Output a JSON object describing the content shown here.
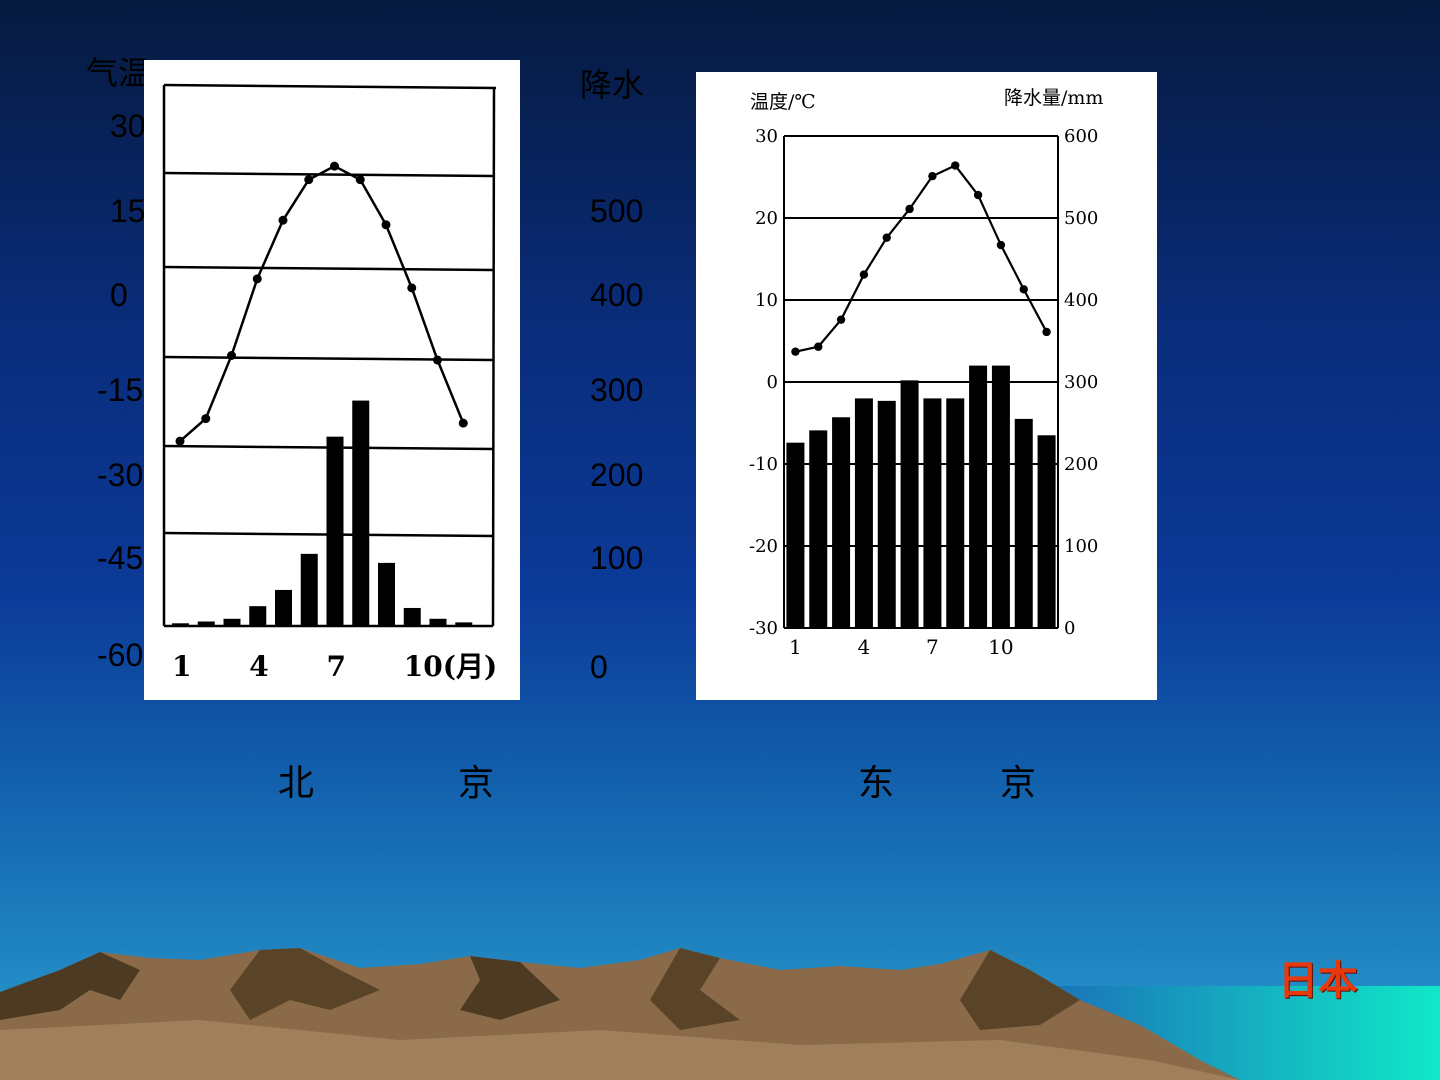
{
  "left_axis": {
    "title": "气温",
    "ticks": [
      "30",
      "15",
      "0",
      "-15",
      "-30",
      "-45",
      "-60"
    ]
  },
  "right_axis": {
    "title": "降水",
    "ticks": [
      "500",
      "400",
      "300",
      "200",
      "100",
      "0"
    ]
  },
  "cities": {
    "beijing": [
      "北",
      "京"
    ],
    "tokyo": [
      "东",
      "京"
    ]
  },
  "country_label": "日本",
  "chart_data": [
    {
      "type": "bar",
      "id": "beijing",
      "x_ticks": [
        "1",
        "4",
        "7",
        "10(月)"
      ],
      "months": [
        1,
        2,
        3,
        4,
        5,
        6,
        7,
        8,
        9,
        10,
        11,
        12
      ],
      "temperature": [
        -4.5,
        -2,
        5,
        13.5,
        20,
        24.5,
        26,
        24.5,
        19.5,
        12.5,
        4.5,
        -2.5
      ],
      "precipitation": [
        3,
        5,
        8,
        22,
        40,
        80,
        210,
        250,
        70,
        20,
        8,
        4
      ],
      "temp_ylim": [
        -25,
        35
      ],
      "precip_ylim": [
        0,
        600
      ]
    },
    {
      "type": "bar",
      "id": "tokyo",
      "ylabel_left": "温度/℃",
      "ylabel_right": "降水量/mm",
      "y_left_ticks": [
        "30",
        "20",
        "10",
        "0",
        "-10",
        "-20",
        "-30"
      ],
      "y_right_ticks": [
        "600",
        "500",
        "400",
        "300",
        "200",
        "100",
        "0"
      ],
      "x_ticks": [
        "1",
        "4",
        "7",
        "10"
      ],
      "months": [
        1,
        2,
        3,
        4,
        5,
        6,
        7,
        8,
        9,
        10,
        11,
        12
      ],
      "temperature": [
        3.7,
        4.3,
        7.6,
        13.1,
        17.6,
        21.1,
        25.1,
        26.4,
        22.8,
        16.7,
        11.3,
        6.1
      ],
      "precipitation": [
        226,
        241,
        257,
        280,
        277,
        302,
        280,
        280,
        320,
        320,
        255,
        235
      ],
      "temp_ylim": [
        -30,
        30
      ],
      "precip_ylim": [
        0,
        600
      ]
    }
  ]
}
